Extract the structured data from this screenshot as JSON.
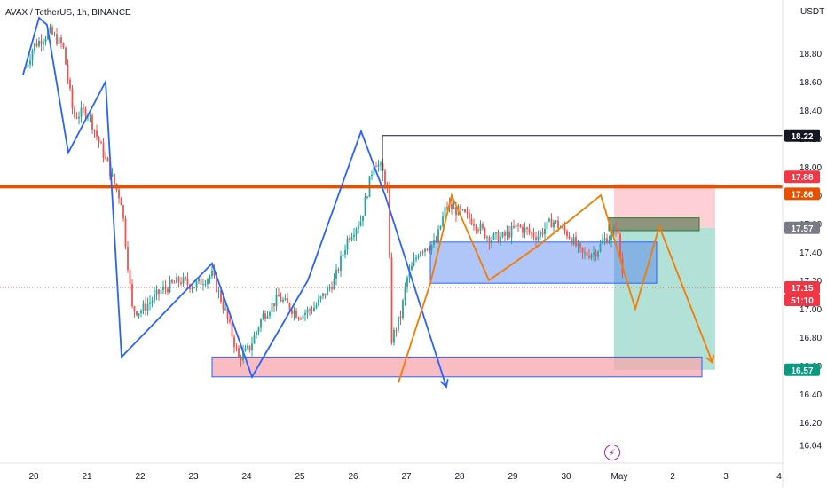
{
  "symbol": "AVAX / TetherUS, 1h, BINANCE",
  "currency": "USDT",
  "flash_icon": "lightning-icon",
  "colors": {
    "up": "#26a69a",
    "down": "#ef5350",
    "resistance": "#e65100",
    "wave_blue": "#2962ff",
    "wave_orange": "#f57c00",
    "zone_blue": "#4f7ff0",
    "zone_pink": "#f7a6ae",
    "target_green": "#a5dcd1",
    "stop_red": "#fcc8cc"
  },
  "chart_data": {
    "type": "candlestick",
    "title": "AVAX / TetherUS, 1h, BINANCE",
    "y_axis": {
      "label": "USDT",
      "ticks": [
        "18.80",
        "18.60",
        "18.40",
        "18.20",
        "18.00",
        "17.80",
        "17.60",
        "17.40",
        "17.20",
        "17.00",
        "16.80",
        "16.60",
        "16.40",
        "16.20",
        "16.04"
      ],
      "range": [
        16.0,
        19.1
      ]
    },
    "x_axis": {
      "ticks": [
        "20",
        "21",
        "22",
        "23",
        "24",
        "25",
        "26",
        "27",
        "28",
        "29",
        "30",
        "May",
        "2",
        "3",
        "4"
      ]
    },
    "price_badges": [
      {
        "value": "18.22",
        "style": "black"
      },
      {
        "value": "17.88",
        "style": "red"
      },
      {
        "value": "17.86",
        "style": "orange"
      },
      {
        "value": "17.57",
        "style": "gray"
      },
      {
        "value": "17.15",
        "style": "red"
      },
      {
        "value": "51:10",
        "style": "red"
      },
      {
        "value": "16.57",
        "style": "teal"
      }
    ],
    "horizontal_levels": [
      {
        "name": "resistance",
        "value": 17.86
      },
      {
        "name": "high-line",
        "value": 18.22
      },
      {
        "name": "current-price",
        "value": 17.15
      }
    ],
    "zones": [
      {
        "name": "demand-zone",
        "from_day": 23.35,
        "to_day": 32.55,
        "low": 16.52,
        "high": 16.66
      },
      {
        "name": "range-zone",
        "from_day": 27.45,
        "to_day": 31.7,
        "low": 17.18,
        "high": 17.47
      },
      {
        "name": "entry-zone",
        "from_day": 30.8,
        "to_day": 32.5,
        "low": 17.55,
        "high": 17.64
      }
    ],
    "position": {
      "entry": 17.57,
      "stop": 17.88,
      "target": 16.57,
      "from_day": 30.9,
      "to_day": 32.8
    },
    "candles_anchor": [
      [
        19.85,
        18.7
      ],
      [
        20.0,
        18.85
      ],
      [
        20.3,
        18.95
      ],
      [
        20.55,
        18.85
      ],
      [
        20.75,
        18.35
      ],
      [
        21.0,
        18.4
      ],
      [
        21.3,
        18.1
      ],
      [
        21.65,
        17.75
      ],
      [
        21.85,
        17.0
      ],
      [
        22.0,
        16.98
      ],
      [
        22.4,
        17.13
      ],
      [
        22.75,
        17.2
      ],
      [
        23.0,
        17.16
      ],
      [
        23.35,
        17.24
      ],
      [
        23.6,
        16.98
      ],
      [
        23.85,
        16.65
      ],
      [
        24.05,
        16.72
      ],
      [
        24.3,
        16.95
      ],
      [
        24.6,
        17.08
      ],
      [
        25.0,
        16.95
      ],
      [
        25.3,
        17.02
      ],
      [
        25.65,
        17.2
      ],
      [
        25.9,
        17.5
      ],
      [
        26.15,
        17.63
      ],
      [
        26.4,
        18.05
      ],
      [
        26.55,
        17.97
      ],
      [
        26.65,
        17.82
      ],
      [
        26.72,
        16.78
      ],
      [
        26.9,
        16.96
      ],
      [
        27.0,
        17.2
      ],
      [
        27.25,
        17.42
      ],
      [
        27.55,
        17.46
      ],
      [
        27.75,
        17.73
      ],
      [
        28.0,
        17.68
      ],
      [
        28.25,
        17.62
      ],
      [
        28.55,
        17.5
      ],
      [
        28.8,
        17.5
      ],
      [
        29.1,
        17.58
      ],
      [
        29.45,
        17.51
      ],
      [
        29.75,
        17.62
      ],
      [
        30.05,
        17.52
      ],
      [
        30.3,
        17.38
      ],
      [
        30.55,
        17.4
      ],
      [
        30.75,
        17.5
      ],
      [
        30.85,
        17.5
      ],
      [
        30.95,
        17.6
      ],
      [
        31.0,
        17.4
      ],
      [
        31.1,
        17.15
      ]
    ],
    "annotations": {
      "blue_wave": [
        [
          19.8,
          18.65
        ],
        [
          20.1,
          19.05
        ],
        [
          20.25,
          19.0
        ],
        [
          20.65,
          18.1
        ],
        [
          21.35,
          18.6
        ],
        [
          21.65,
          16.66
        ],
        [
          23.35,
          17.32
        ],
        [
          24.1,
          16.52
        ],
        [
          25.15,
          17.2
        ],
        [
          26.15,
          18.25
        ],
        [
          26.6,
          17.8
        ],
        [
          27.75,
          16.45
        ]
      ],
      "orange_wave": [
        [
          26.85,
          16.48
        ],
        [
          27.45,
          17.18
        ],
        [
          27.85,
          17.8
        ],
        [
          28.55,
          17.2
        ],
        [
          29.5,
          17.45
        ],
        [
          30.65,
          17.8
        ],
        [
          31.3,
          17.0
        ],
        [
          31.75,
          17.58
        ],
        [
          32.75,
          16.62
        ]
      ]
    }
  }
}
